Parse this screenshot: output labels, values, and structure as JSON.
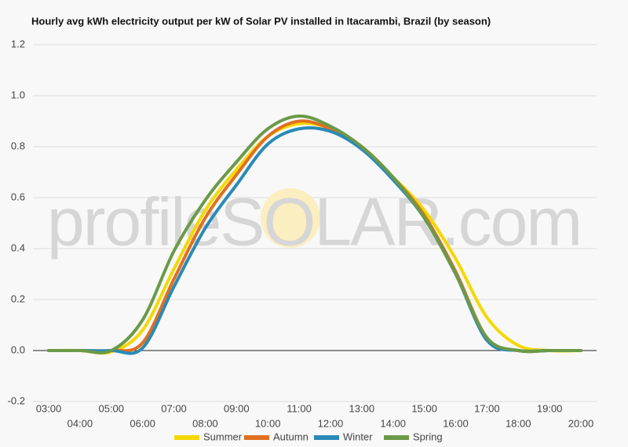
{
  "chart_data": {
    "type": "line",
    "title": "Hourly avg kWh electricity output per kW of Solar PV installed in Itacarambi, Brazil (by season)",
    "watermark": "profileSOLAR.com",
    "categories": [
      "03:00",
      "04:00",
      "05:00",
      "06:00",
      "07:00",
      "08:00",
      "09:00",
      "10:00",
      "11:00",
      "12:00",
      "13:00",
      "14:00",
      "15:00",
      "16:00",
      "17:00",
      "18:00",
      "19:00",
      "20:00"
    ],
    "series": [
      {
        "name": "Summer",
        "color": "#f5d800",
        "values": [
          0,
          0,
          -0.005,
          0.08,
          0.32,
          0.55,
          0.71,
          0.84,
          0.89,
          0.87,
          0.79,
          0.68,
          0.55,
          0.36,
          0.13,
          0.02,
          0,
          0
        ]
      },
      {
        "name": "Autumn",
        "color": "#e07020",
        "values": [
          0,
          0,
          0,
          0.03,
          0.28,
          0.52,
          0.69,
          0.84,
          0.9,
          0.87,
          0.8,
          0.68,
          0.53,
          0.31,
          0.05,
          0,
          0,
          0
        ]
      },
      {
        "name": "Winter",
        "color": "#2a8ab8",
        "values": [
          0,
          0,
          0,
          0.01,
          0.25,
          0.48,
          0.65,
          0.81,
          0.87,
          0.86,
          0.79,
          0.67,
          0.52,
          0.3,
          0.04,
          0,
          0,
          0
        ]
      },
      {
        "name": "Spring",
        "color": "#6a9a48",
        "values": [
          0,
          0,
          0,
          0.12,
          0.39,
          0.59,
          0.74,
          0.87,
          0.92,
          0.88,
          0.8,
          0.68,
          0.52,
          0.3,
          0.05,
          0,
          0,
          0
        ]
      }
    ],
    "ylim": [
      -0.2,
      1.2
    ],
    "yticks": [
      -0.2,
      {
        "value": 0,
        "label": "0.0"
      },
      0.2,
      0.4,
      0.6,
      0.8,
      {
        "value": 1,
        "label": "1.0"
      },
      1.2
    ],
    "grid": true
  }
}
